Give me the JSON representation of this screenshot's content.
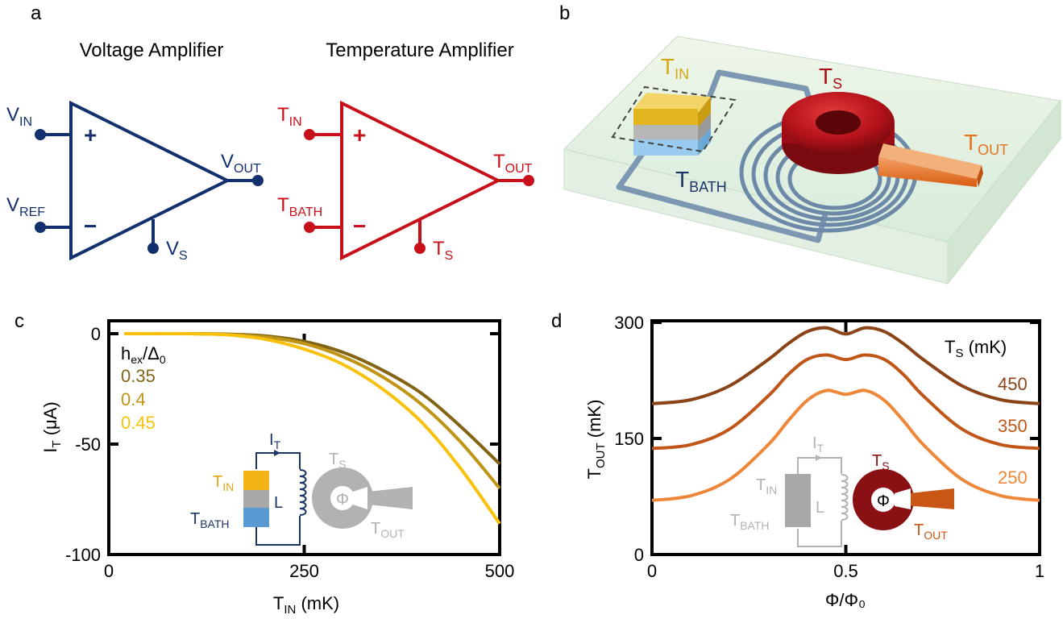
{
  "colors": {
    "voltage": "#12306e",
    "temperature": "#c8101a",
    "tin_yellow": "#e9b92a",
    "tbath_blue": "#5a9ad2",
    "gray": "#a8a8a8",
    "tout_orange": "#e66a1a",
    "ts_dark_red": "#8a1014"
  },
  "panel_a": {
    "label": "a",
    "voltage_title": "Voltage Amplifier",
    "temperature_title": "Temperature Amplifier",
    "voltage": {
      "in_main": "V",
      "in_sub": "IN",
      "ref_main": "V",
      "ref_sub": "REF",
      "out_main": "V",
      "out_sub": "OUT",
      "s_main": "V",
      "s_sub": "S",
      "plus": "+",
      "minus": "−"
    },
    "temperature": {
      "in_main": "T",
      "in_sub": "IN",
      "bath_main": "T",
      "bath_sub": "BATH",
      "out_main": "T",
      "out_sub": "OUT",
      "s_main": "T",
      "s_sub": "S",
      "plus": "+",
      "minus": "−"
    }
  },
  "panel_b": {
    "label": "b",
    "tin_main": "T",
    "tin_sub": "IN",
    "ts_main": "T",
    "ts_sub": "S",
    "tout_main": "T",
    "tout_sub": "OUT",
    "tbath_main": "T",
    "tbath_sub": "BATH"
  },
  "panel_c": {
    "label": "c",
    "legend_title_main": "h",
    "legend_title_sub1": "ex",
    "legend_title_mid": "/Δ",
    "legend_title_sub2": "0",
    "inset": {
      "it_main": "I",
      "it_sub": "T",
      "tin_main": "T",
      "tin_sub": "IN",
      "tbath_main": "T",
      "tbath_sub": "BATH",
      "l": "L",
      "phi": "Φ",
      "ts_main": "T",
      "ts_sub": "S",
      "tout_main": "T",
      "tout_sub": "OUT"
    }
  },
  "panel_d": {
    "label": "d",
    "ts_header_main": "T",
    "ts_header_sub": "S",
    "ts_header_unit": " (mK)",
    "inset": {
      "it_main": "I",
      "it_sub": "T",
      "tin_main": "T",
      "tin_sub": "IN",
      "tbath_main": "T",
      "tbath_sub": "BATH",
      "l": "L",
      "phi": "Φ",
      "ts_main": "T",
      "ts_sub": "S",
      "tout_main": "T",
      "tout_sub": "OUT"
    }
  },
  "chart_data": [
    {
      "type": "line",
      "panel": "c",
      "xlabel_main": "T",
      "xlabel_sub": "IN",
      "xlabel_unit": " (mK)",
      "ylabel_main": "I",
      "ylabel_sub": "T",
      "ylabel_unit": " (μA)",
      "xlim": [
        0,
        500
      ],
      "ylim": [
        -100,
        0
      ],
      "xticks": [
        0,
        250,
        500
      ],
      "xtick_labels": [
        "0",
        "250",
        "500"
      ],
      "yticks": [
        0,
        -50,
        -100
      ],
      "ytick_labels": [
        "0",
        "-50",
        "-100"
      ],
      "series": [
        {
          "name": "0.35",
          "color": "#826414",
          "x": [
            20,
            100,
            150,
            200,
            250,
            300,
            350,
            400,
            450,
            500
          ],
          "y": [
            0,
            0,
            -0.2,
            -1,
            -3.5,
            -8.5,
            -16.5,
            -27,
            -42,
            -59
          ]
        },
        {
          "name": "0.4",
          "color": "#c09414",
          "x": [
            20,
            100,
            150,
            200,
            250,
            300,
            350,
            400,
            450,
            500
          ],
          "y": [
            0,
            0,
            -0.3,
            -1.5,
            -4.5,
            -10.5,
            -19.5,
            -32,
            -49,
            -70
          ]
        },
        {
          "name": "0.45",
          "color": "#f7c10c",
          "x": [
            20,
            100,
            150,
            200,
            250,
            300,
            350,
            400,
            450,
            500
          ],
          "y": [
            0,
            0,
            -0.5,
            -2.5,
            -7,
            -14,
            -25,
            -40,
            -61,
            -86
          ]
        }
      ]
    },
    {
      "type": "line",
      "panel": "d",
      "xlabel": "Φ/Φ₀",
      "ylabel_main": "T",
      "ylabel_sub": "OUT",
      "ylabel_unit": " (mK)",
      "xlim": [
        0,
        1
      ],
      "ylim": [
        0,
        300
      ],
      "xticks": [
        0,
        0.5,
        1
      ],
      "xtick_labels": [
        "0",
        "0.5",
        "1"
      ],
      "yticks": [
        0,
        150,
        300
      ],
      "ytick_labels": [
        "0",
        "150",
        "300"
      ],
      "series": [
        {
          "name": "450",
          "color": "#8a4418",
          "x": [
            0,
            0.1,
            0.2,
            0.3,
            0.35,
            0.4,
            0.45,
            0.5,
            0.55,
            0.6,
            0.65,
            0.7,
            0.8,
            0.9,
            1.0
          ],
          "y": [
            195,
            200,
            218,
            252,
            272,
            288,
            293,
            285,
            293,
            288,
            272,
            252,
            218,
            200,
            195
          ]
        },
        {
          "name": "350",
          "color": "#c05618",
          "x": [
            0,
            0.1,
            0.2,
            0.3,
            0.35,
            0.4,
            0.45,
            0.5,
            0.55,
            0.6,
            0.65,
            0.7,
            0.8,
            0.9,
            1.0
          ],
          "y": [
            137,
            142,
            162,
            205,
            232,
            252,
            258,
            252,
            258,
            252,
            232,
            205,
            162,
            142,
            137
          ]
        },
        {
          "name": "250",
          "color": "#ef8738",
          "x": [
            0,
            0.1,
            0.2,
            0.3,
            0.35,
            0.4,
            0.45,
            0.5,
            0.55,
            0.6,
            0.65,
            0.7,
            0.8,
            0.9,
            1.0
          ],
          "y": [
            70,
            76,
            97,
            142,
            172,
            199,
            212,
            207,
            212,
            199,
            172,
            142,
            97,
            76,
            70
          ]
        }
      ]
    }
  ]
}
